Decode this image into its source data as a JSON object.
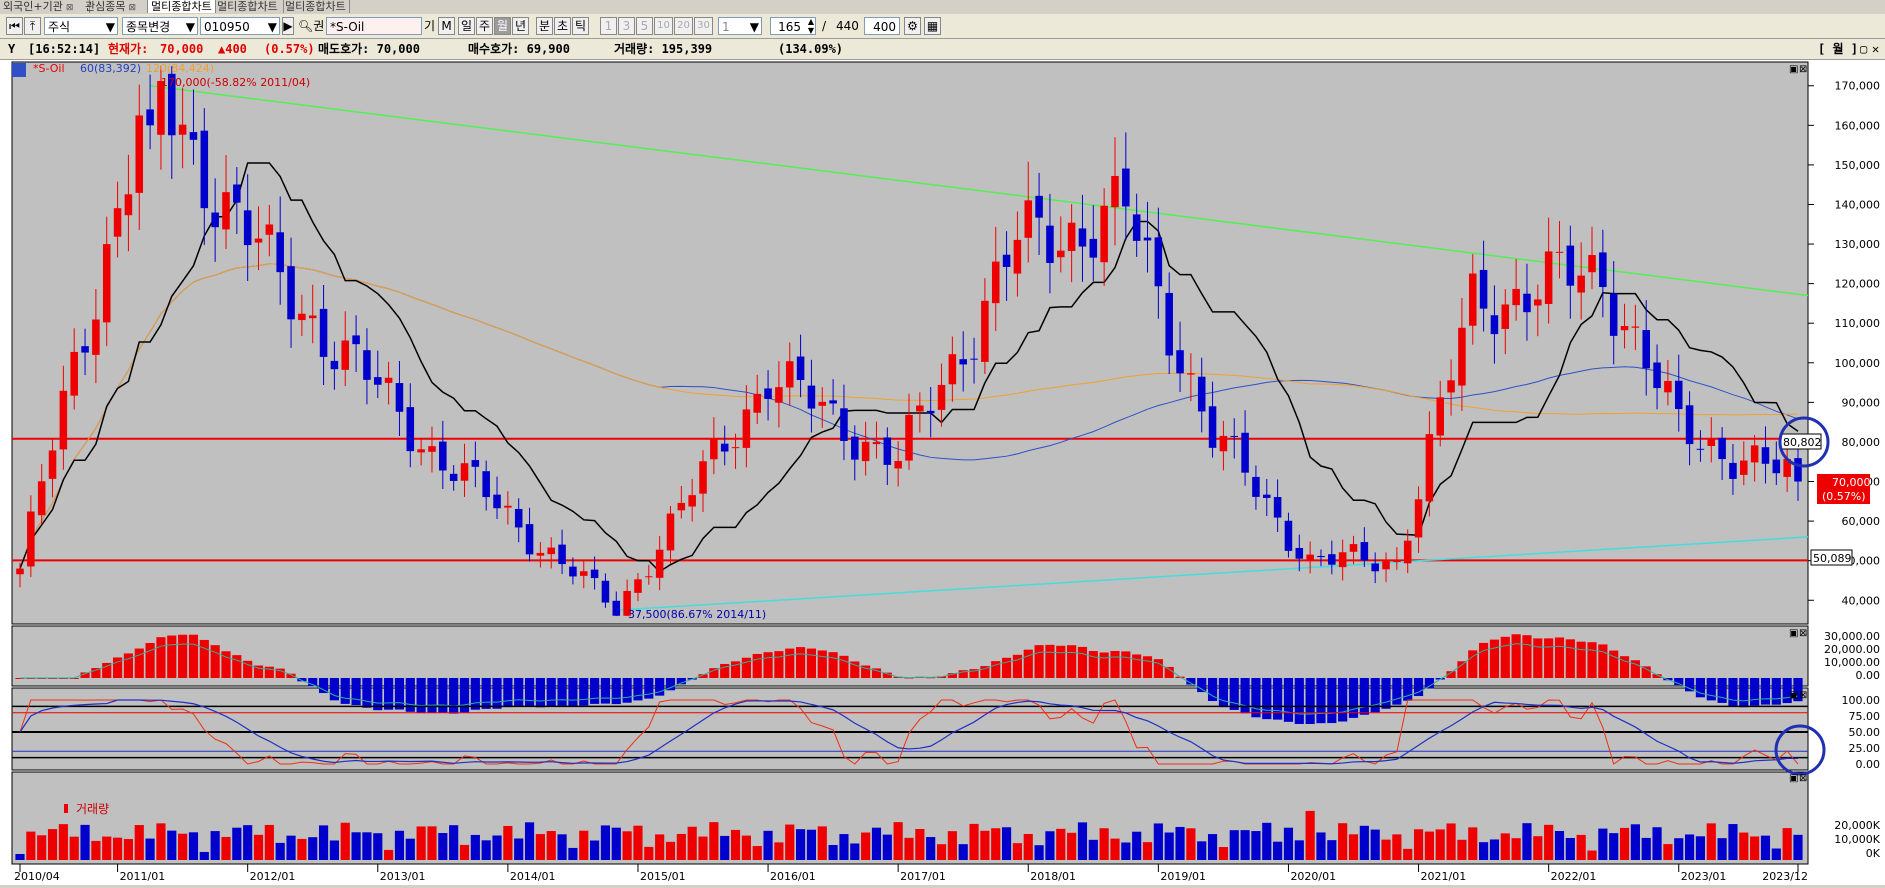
{
  "tabs": [
    "외국인+기관",
    "관심종목",
    "멀티종합차트",
    "멀티종합차트",
    "멀티종합차트"
  ],
  "toolbar": {
    "market": "주식",
    "change_button": "종목변경",
    "code": "010950",
    "search_label": "권",
    "name": "*S-Oil",
    "gi": "기",
    "m": "M",
    "periods": [
      "일",
      "주",
      "월",
      "년",
      "분",
      "초",
      "틱"
    ],
    "active_period": "월",
    "intervals": [
      "1",
      "3",
      "5",
      "10",
      "20",
      "30"
    ],
    "interval_select": "1",
    "count": "165",
    "slash": "/",
    "total": "440",
    "view": "400"
  },
  "status": {
    "time": "[16:52:14]",
    "price_label": "현재가:",
    "price": "70,000",
    "change": "▲400",
    "change_pct": "(0.57%)",
    "ask": "매도호가: 70,000",
    "bid": "매수호가: 69,900",
    "volume": "거래량: 195,399",
    "volume_pct": "(134.09%)",
    "right_label": "[ 월 ]"
  },
  "colors": {
    "up": "#ee0000",
    "down": "#0000cc",
    "ma60": "#3050c8",
    "ma120": "#f0a030",
    "cloud": "#000000",
    "resistance": "#55ee55",
    "support": "#44dddd",
    "hline": "#ee0000",
    "bg": "#c0c0c0"
  },
  "chart_data": {
    "type": "candlestick",
    "legend": [
      "*S-Oil",
      "60(83,392)",
      "120(84,424)"
    ],
    "annotations": {
      "high": "170,000(-58.82% 2011/04)",
      "low": "37,500(86.67% 2014/11)",
      "level_top": "80,802",
      "level_bottom": "50,089",
      "last_price": "70,000",
      "last_change": "(0.57%)"
    },
    "price_axis": [
      "170,000",
      "160,000",
      "150,000",
      "140,000",
      "130,000",
      "120,000",
      "110,000",
      "100,000",
      "90,000",
      "80,000",
      "70,000",
      "60,000",
      "50,000",
      "40,000"
    ],
    "ylim": [
      34000,
      176000
    ],
    "x_labels": [
      "2010/04",
      "2011/01",
      "2012/01",
      "2013/01",
      "2014/01",
      "2015/01",
      "2016/01",
      "2017/01",
      "2018/01",
      "2019/01",
      "2020/01",
      "2021/01",
      "2022/01",
      "2023/01",
      "2023/12"
    ],
    "key_points": [
      {
        "date": "2010/04",
        "price": 48000
      },
      {
        "date": "2011/04",
        "price": 170000
      },
      {
        "date": "2012/04",
        "price": 120000
      },
      {
        "date": "2013/06",
        "price": 78000
      },
      {
        "date": "2014/11",
        "price": 37500
      },
      {
        "date": "2016/01",
        "price": 97000
      },
      {
        "date": "2017/01",
        "price": 75000
      },
      {
        "date": "2017/12",
        "price": 130000
      },
      {
        "date": "2018/10",
        "price": 138000
      },
      {
        "date": "2019/06",
        "price": 82000
      },
      {
        "date": "2020/03",
        "price": 50000
      },
      {
        "date": "2020/11",
        "price": 50000
      },
      {
        "date": "2021/06",
        "price": 115000
      },
      {
        "date": "2022/06",
        "price": 123000
      },
      {
        "date": "2023/01",
        "price": 83000
      },
      {
        "date": "2023/12",
        "price": 70000
      }
    ],
    "panel2_axis": [
      "30,000.00",
      "20,000.00",
      "10,000.00",
      "0.00"
    ],
    "panel3_axis": [
      "100.00",
      "75.00",
      "50.00",
      "25.00",
      "0.00"
    ],
    "volume_label": "거래량",
    "volume_axis": [
      "20,000K",
      "10,000K",
      "0K"
    ]
  }
}
